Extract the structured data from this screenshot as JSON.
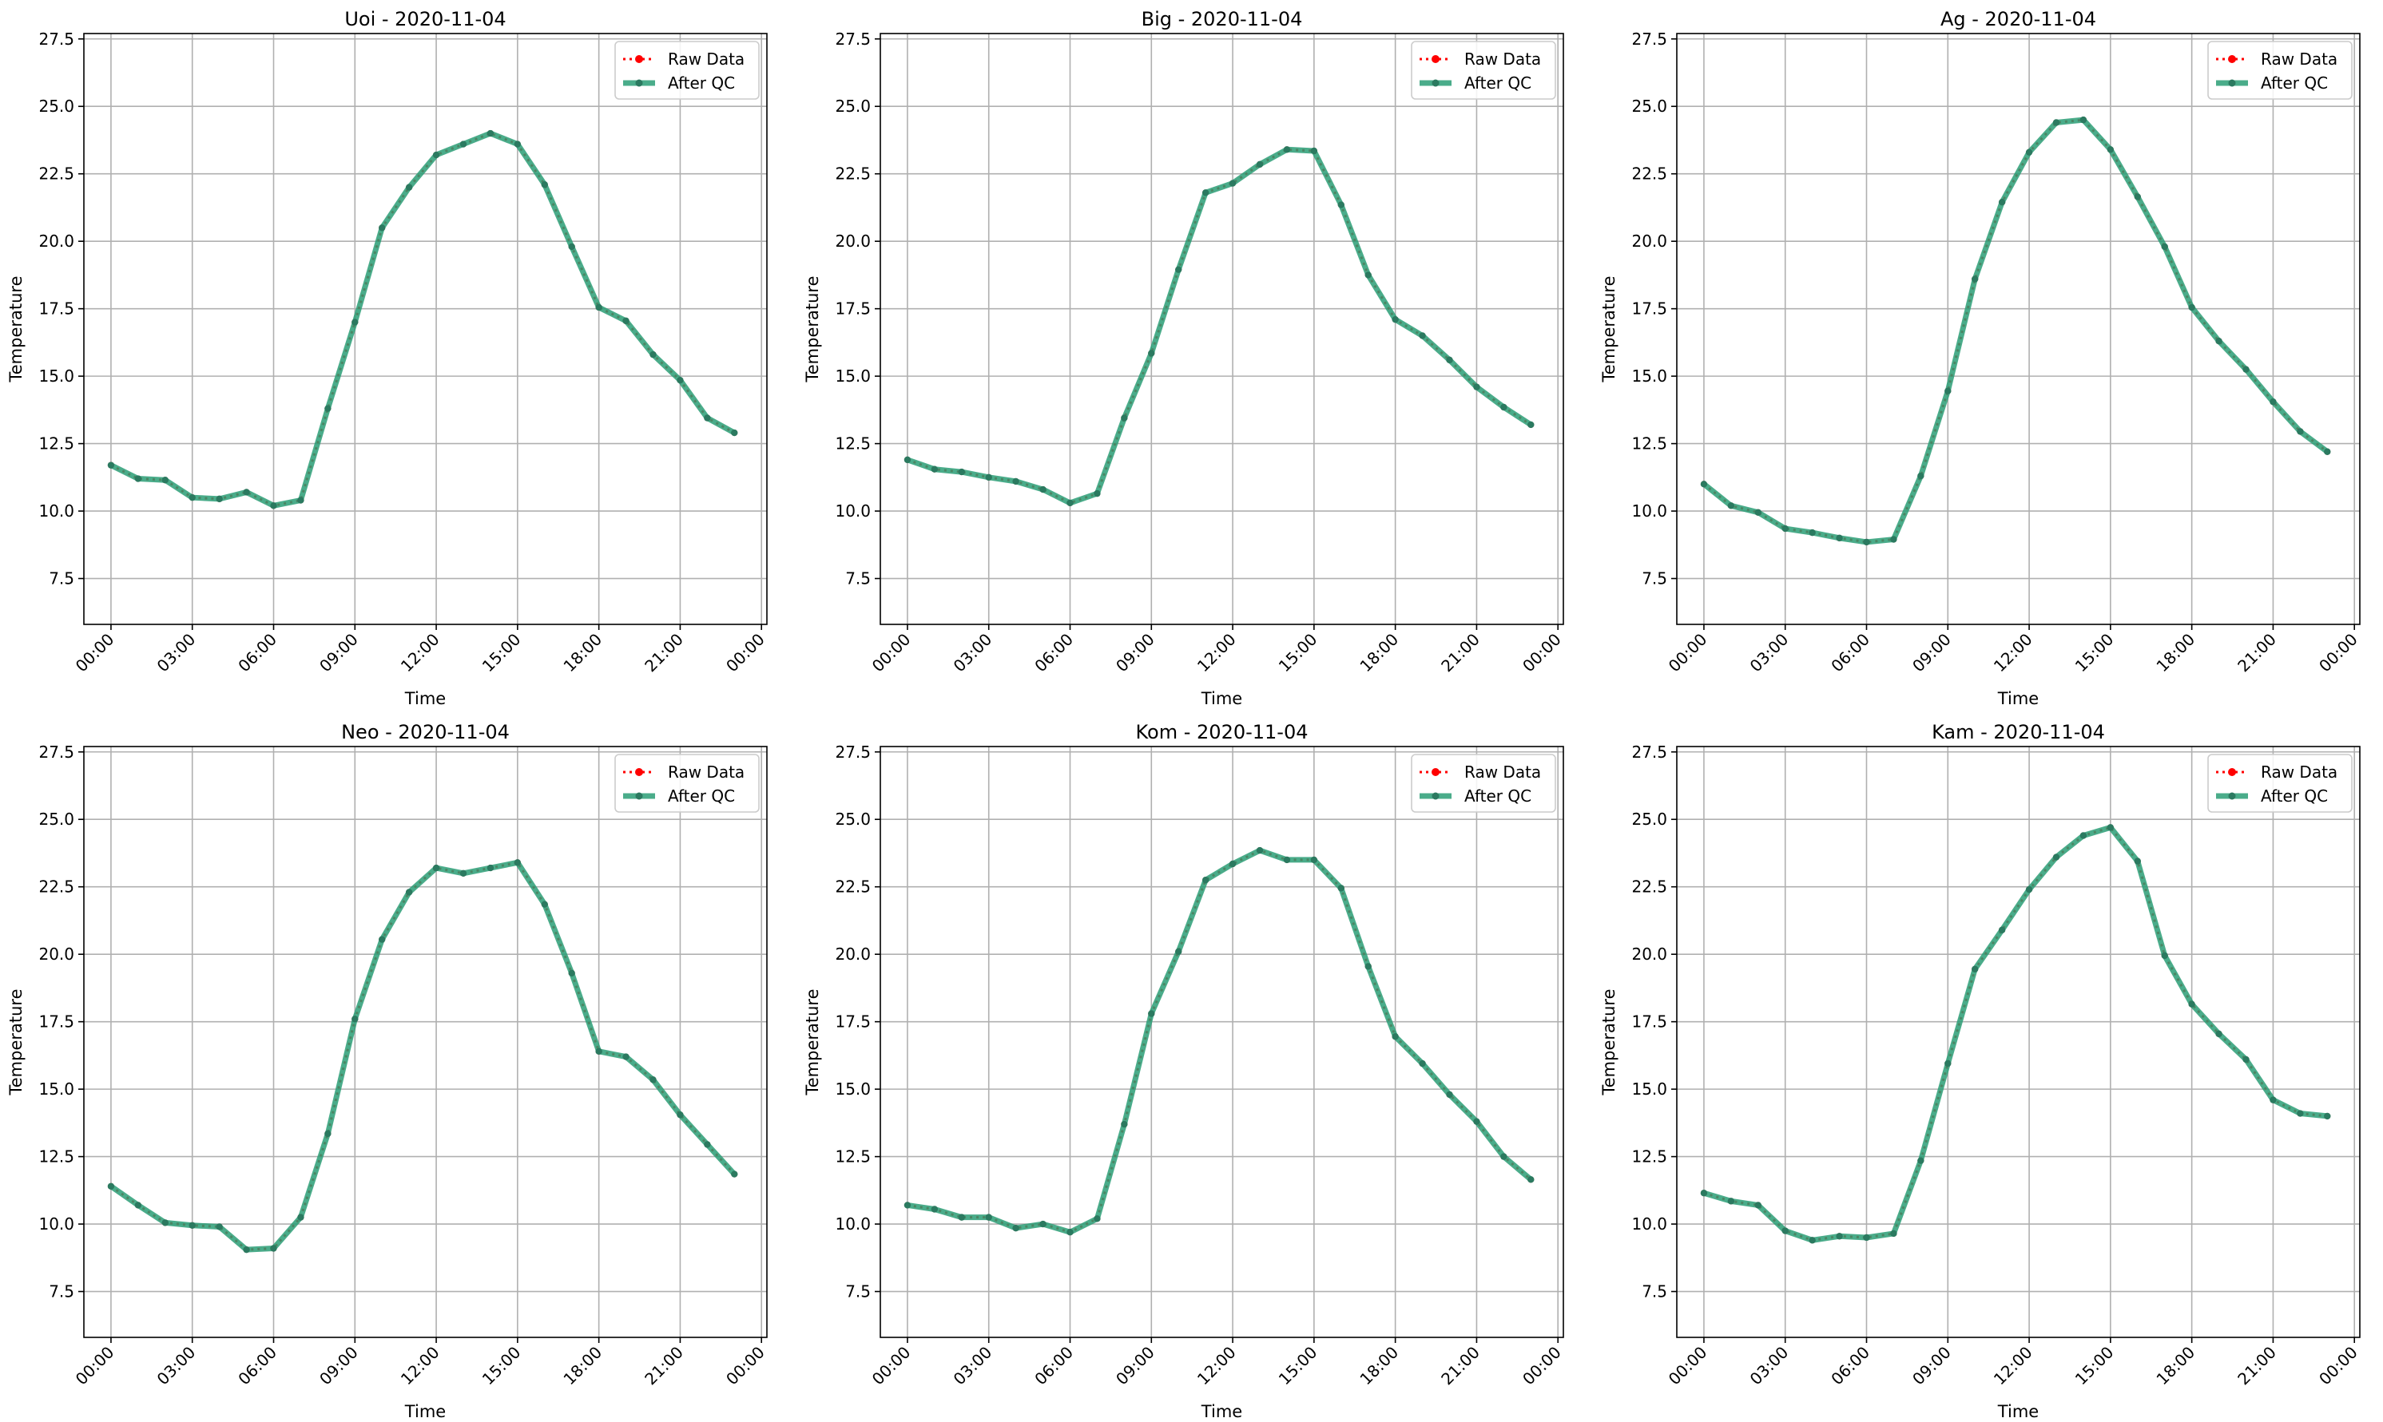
{
  "colors": {
    "raw": "#ff0000",
    "qc": "#2a9d76",
    "grid": "#b0b0b0",
    "axis": "#000000"
  },
  "legend_labels": {
    "raw": "Raw Data",
    "qc": "After QC"
  },
  "chart_data": [
    {
      "type": "line",
      "title": "Uoi - 2020-11-04",
      "xlabel": "Time",
      "ylabel": "Temperature",
      "x_ticks": [
        "00:00",
        "03:00",
        "06:00",
        "09:00",
        "12:00",
        "15:00",
        "18:00",
        "21:00",
        "00:00"
      ],
      "y_ticks": [
        "7.5",
        "10.0",
        "12.5",
        "15.0",
        "17.5",
        "20.0",
        "22.5",
        "25.0",
        "27.5"
      ],
      "ylim": [
        5.8,
        27.7
      ],
      "xlim_hours": [
        -1,
        24.2
      ],
      "grid": true,
      "legend_position": "upper right",
      "x_hours": [
        0,
        1,
        2,
        3,
        4,
        5,
        6,
        7,
        8,
        9,
        10,
        11,
        12,
        13,
        14,
        15,
        16,
        17,
        18,
        19,
        20,
        21,
        22,
        23
      ],
      "series": [
        {
          "name": "Raw Data",
          "values": [
            11.7,
            11.2,
            11.15,
            10.5,
            10.45,
            10.7,
            10.2,
            10.4,
            13.8,
            17.0,
            20.5,
            22.0,
            23.2,
            23.6,
            24.0,
            23.6,
            22.1,
            19.8,
            17.55,
            17.05,
            15.8,
            14.85,
            13.45,
            12.9
          ]
        },
        {
          "name": "After QC",
          "values": [
            11.7,
            11.2,
            11.15,
            10.5,
            10.45,
            10.7,
            10.2,
            10.4,
            13.8,
            17.0,
            20.5,
            22.0,
            23.2,
            23.6,
            24.0,
            23.6,
            22.1,
            19.8,
            17.55,
            17.05,
            15.8,
            14.85,
            13.45,
            12.9
          ]
        }
      ]
    },
    {
      "type": "line",
      "title": "Big - 2020-11-04",
      "xlabel": "Time",
      "ylabel": "Temperature",
      "x_ticks": [
        "00:00",
        "03:00",
        "06:00",
        "09:00",
        "12:00",
        "15:00",
        "18:00",
        "21:00",
        "00:00"
      ],
      "y_ticks": [
        "7.5",
        "10.0",
        "12.5",
        "15.0",
        "17.5",
        "20.0",
        "22.5",
        "25.0",
        "27.5"
      ],
      "ylim": [
        5.8,
        27.7
      ],
      "xlim_hours": [
        -1,
        24.2
      ],
      "grid": true,
      "legend_position": "upper right",
      "x_hours": [
        0,
        1,
        2,
        3,
        4,
        5,
        6,
        7,
        8,
        9,
        10,
        11,
        12,
        13,
        14,
        15,
        16,
        17,
        18,
        19,
        20,
        21,
        22,
        23
      ],
      "series": [
        {
          "name": "Raw Data",
          "values": [
            11.9,
            11.55,
            11.45,
            11.25,
            11.1,
            10.8,
            10.3,
            10.65,
            13.45,
            15.85,
            18.95,
            21.8,
            22.15,
            22.85,
            23.4,
            23.35,
            21.35,
            18.75,
            17.1,
            16.5,
            15.6,
            14.6,
            13.85,
            13.2
          ]
        },
        {
          "name": "After QC",
          "values": [
            11.9,
            11.55,
            11.45,
            11.25,
            11.1,
            10.8,
            10.3,
            10.65,
            13.45,
            15.85,
            18.95,
            21.8,
            22.15,
            22.85,
            23.4,
            23.35,
            21.35,
            18.75,
            17.1,
            16.5,
            15.6,
            14.6,
            13.85,
            13.2
          ]
        }
      ]
    },
    {
      "type": "line",
      "title": "Ag - 2020-11-04",
      "xlabel": "Time",
      "ylabel": "Temperature",
      "x_ticks": [
        "00:00",
        "03:00",
        "06:00",
        "09:00",
        "12:00",
        "15:00",
        "18:00",
        "21:00",
        "00:00"
      ],
      "y_ticks": [
        "7.5",
        "10.0",
        "12.5",
        "15.0",
        "17.5",
        "20.0",
        "22.5",
        "25.0",
        "27.5"
      ],
      "ylim": [
        5.8,
        27.7
      ],
      "xlim_hours": [
        -1,
        24.2
      ],
      "grid": true,
      "legend_position": "upper right",
      "x_hours": [
        0,
        1,
        2,
        3,
        4,
        5,
        6,
        7,
        8,
        9,
        10,
        11,
        12,
        13,
        14,
        15,
        16,
        17,
        18,
        19,
        20,
        21,
        22,
        23
      ],
      "series": [
        {
          "name": "Raw Data",
          "values": [
            11.0,
            10.2,
            9.95,
            9.35,
            9.2,
            9.0,
            8.85,
            8.95,
            11.3,
            14.45,
            18.6,
            21.45,
            23.3,
            24.4,
            24.5,
            23.4,
            21.65,
            19.8,
            17.55,
            16.3,
            15.25,
            14.05,
            12.95,
            12.2
          ]
        },
        {
          "name": "After QC",
          "values": [
            11.0,
            10.2,
            9.95,
            9.35,
            9.2,
            9.0,
            8.85,
            8.95,
            11.3,
            14.45,
            18.6,
            21.45,
            23.3,
            24.4,
            24.5,
            23.4,
            21.65,
            19.8,
            17.55,
            16.3,
            15.25,
            14.05,
            12.95,
            12.2
          ]
        }
      ]
    },
    {
      "type": "line",
      "title": "Neo - 2020-11-04",
      "xlabel": "Time",
      "ylabel": "Temperature",
      "x_ticks": [
        "00:00",
        "03:00",
        "06:00",
        "09:00",
        "12:00",
        "15:00",
        "18:00",
        "21:00",
        "00:00"
      ],
      "y_ticks": [
        "7.5",
        "10.0",
        "12.5",
        "15.0",
        "17.5",
        "20.0",
        "22.5",
        "25.0",
        "27.5"
      ],
      "ylim": [
        5.8,
        27.7
      ],
      "xlim_hours": [
        -1,
        24.2
      ],
      "grid": true,
      "legend_position": "upper right",
      "x_hours": [
        0,
        1,
        2,
        3,
        4,
        5,
        6,
        7,
        8,
        9,
        10,
        11,
        12,
        13,
        14,
        15,
        16,
        17,
        18,
        19,
        20,
        21,
        22,
        23
      ],
      "series": [
        {
          "name": "Raw Data",
          "values": [
            11.4,
            10.7,
            10.05,
            9.95,
            9.9,
            9.05,
            9.1,
            10.25,
            13.35,
            17.6,
            20.55,
            22.3,
            23.2,
            23.0,
            23.2,
            23.4,
            21.85,
            19.3,
            16.4,
            16.2,
            15.35,
            14.05,
            12.95,
            11.85
          ]
        },
        {
          "name": "After QC",
          "values": [
            11.4,
            10.7,
            10.05,
            9.95,
            9.9,
            9.05,
            9.1,
            10.25,
            13.35,
            17.6,
            20.55,
            22.3,
            23.2,
            23.0,
            23.2,
            23.4,
            21.85,
            19.3,
            16.4,
            16.2,
            15.35,
            14.05,
            12.95,
            11.85
          ]
        }
      ]
    },
    {
      "type": "line",
      "title": "Kom - 2020-11-04",
      "xlabel": "Time",
      "ylabel": "Temperature",
      "x_ticks": [
        "00:00",
        "03:00",
        "06:00",
        "09:00",
        "12:00",
        "15:00",
        "18:00",
        "21:00",
        "00:00"
      ],
      "y_ticks": [
        "7.5",
        "10.0",
        "12.5",
        "15.0",
        "17.5",
        "20.0",
        "22.5",
        "25.0",
        "27.5"
      ],
      "ylim": [
        5.8,
        27.7
      ],
      "xlim_hours": [
        -1,
        24.2
      ],
      "grid": true,
      "legend_position": "upper right",
      "x_hours": [
        0,
        1,
        2,
        3,
        4,
        5,
        6,
        7,
        8,
        9,
        10,
        11,
        12,
        13,
        14,
        15,
        16,
        17,
        18,
        19,
        20,
        21,
        22,
        23
      ],
      "series": [
        {
          "name": "Raw Data",
          "values": [
            10.7,
            10.55,
            10.25,
            10.25,
            9.85,
            10.0,
            9.7,
            10.2,
            13.7,
            17.8,
            20.1,
            22.75,
            23.35,
            23.85,
            23.5,
            23.5,
            22.45,
            19.55,
            16.95,
            15.95,
            14.8,
            13.8,
            12.5,
            11.65
          ]
        },
        {
          "name": "After QC",
          "values": [
            10.7,
            10.55,
            10.25,
            10.25,
            9.85,
            10.0,
            9.7,
            10.2,
            13.7,
            17.8,
            20.1,
            22.75,
            23.35,
            23.85,
            23.5,
            23.5,
            22.45,
            19.55,
            16.95,
            15.95,
            14.8,
            13.8,
            12.5,
            11.65
          ]
        }
      ]
    },
    {
      "type": "line",
      "title": "Kam - 2020-11-04",
      "xlabel": "Time",
      "ylabel": "Temperature",
      "x_ticks": [
        "00:00",
        "03:00",
        "06:00",
        "09:00",
        "12:00",
        "15:00",
        "18:00",
        "21:00",
        "00:00"
      ],
      "y_ticks": [
        "7.5",
        "10.0",
        "12.5",
        "15.0",
        "17.5",
        "20.0",
        "22.5",
        "25.0",
        "27.5"
      ],
      "ylim": [
        5.8,
        27.7
      ],
      "xlim_hours": [
        -1,
        24.2
      ],
      "grid": true,
      "legend_position": "upper right",
      "x_hours": [
        0,
        1,
        2,
        3,
        4,
        5,
        6,
        7,
        8,
        9,
        10,
        11,
        12,
        13,
        14,
        15,
        16,
        17,
        18,
        19,
        20,
        21,
        22,
        23
      ],
      "series": [
        {
          "name": "Raw Data",
          "values": [
            11.15,
            10.85,
            10.7,
            9.75,
            9.4,
            9.55,
            9.5,
            9.65,
            12.35,
            15.95,
            19.45,
            20.9,
            22.4,
            23.6,
            24.4,
            24.7,
            23.45,
            19.95,
            18.15,
            17.05,
            16.1,
            14.6,
            14.1,
            14.0
          ]
        },
        {
          "name": "After QC",
          "values": [
            11.15,
            10.85,
            10.7,
            9.75,
            9.4,
            9.55,
            9.5,
            9.65,
            12.35,
            15.95,
            19.45,
            20.9,
            22.4,
            23.6,
            24.4,
            24.7,
            23.45,
            19.95,
            18.15,
            17.05,
            16.1,
            14.6,
            14.1,
            14.0
          ]
        }
      ]
    }
  ]
}
